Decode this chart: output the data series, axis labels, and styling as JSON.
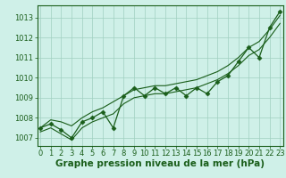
{
  "xlabel": "Graphe pression niveau de la mer (hPa)",
  "x_values": [
    0,
    1,
    2,
    3,
    4,
    5,
    6,
    7,
    8,
    9,
    10,
    11,
    12,
    13,
    14,
    15,
    16,
    17,
    18,
    19,
    20,
    21,
    22,
    23
  ],
  "y_main": [
    1007.5,
    1007.7,
    1007.4,
    1007.0,
    1007.8,
    1008.0,
    1008.3,
    1007.5,
    1009.1,
    1009.5,
    1009.1,
    1009.5,
    1009.2,
    1009.5,
    1009.1,
    1009.5,
    1009.2,
    1009.8,
    1010.1,
    1010.8,
    1011.5,
    1011.0,
    1012.5,
    1013.3
  ],
  "y_upper": [
    1007.5,
    1007.9,
    1007.8,
    1007.6,
    1008.0,
    1008.3,
    1008.5,
    1008.8,
    1009.1,
    1009.4,
    1009.5,
    1009.6,
    1009.6,
    1009.7,
    1009.8,
    1009.9,
    1010.1,
    1010.3,
    1010.6,
    1011.0,
    1011.5,
    1011.8,
    1012.4,
    1013.1
  ],
  "y_lower": [
    1007.3,
    1007.5,
    1007.2,
    1006.9,
    1007.5,
    1007.8,
    1008.0,
    1008.2,
    1008.7,
    1009.0,
    1009.1,
    1009.2,
    1009.2,
    1009.3,
    1009.4,
    1009.5,
    1009.7,
    1009.9,
    1010.2,
    1010.6,
    1011.1,
    1011.4,
    1012.0,
    1012.7
  ],
  "ylim": [
    1006.6,
    1013.6
  ],
  "xlim": [
    -0.3,
    23.3
  ],
  "yticks": [
    1007,
    1008,
    1009,
    1010,
    1011,
    1012,
    1013
  ],
  "xticks": [
    0,
    1,
    2,
    3,
    4,
    5,
    6,
    7,
    8,
    9,
    10,
    11,
    12,
    13,
    14,
    15,
    16,
    17,
    18,
    19,
    20,
    21,
    22,
    23
  ],
  "line_color": "#1a5e1a",
  "bg_color": "#cff0e8",
  "grid_color": "#a0cfc0",
  "marker": "D",
  "marker_size": 2.5,
  "line_width": 0.9,
  "xlabel_fontsize": 7.5,
  "tick_fontsize": 6.0
}
